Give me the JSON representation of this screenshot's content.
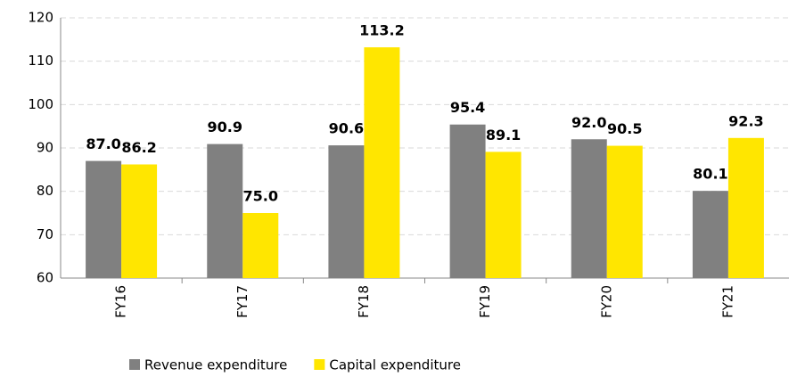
{
  "chart_data": {
    "type": "bar",
    "categories": [
      "FY16",
      "FY17",
      "FY18",
      "FY19",
      "FY20",
      "FY21"
    ],
    "series": [
      {
        "name": "Revenue expenditure",
        "color": "#808080",
        "values": [
          87.0,
          90.9,
          90.6,
          95.4,
          92.0,
          80.1
        ],
        "value_labels": [
          "87.0",
          "90.9",
          "90.6",
          "95.4",
          "92.0",
          "80.1"
        ]
      },
      {
        "name": "Capital expenditure",
        "color": "#ffe600",
        "values": [
          86.2,
          75.0,
          113.2,
          89.1,
          90.5,
          92.3
        ],
        "value_labels": [
          "86.2",
          "75.0",
          "113.2",
          "89.1",
          "90.5",
          "92.3"
        ]
      }
    ],
    "ylim": [
      60,
      120
    ],
    "yticks": [
      60,
      70,
      80,
      90,
      100,
      110,
      120
    ],
    "grid": true,
    "legend": "bottom"
  }
}
